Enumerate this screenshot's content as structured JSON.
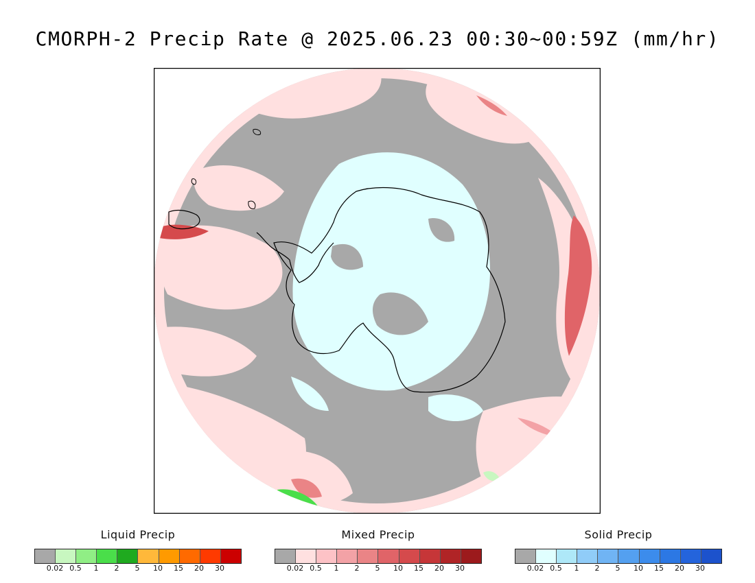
{
  "title": "CMORPH-2 Precip Rate @ 2025.06.23 00:30~00:59Z (mm/hr)",
  "map": {
    "projection": "south-polar-stereographic",
    "background_color": "#a8a8a8",
    "coastline_color": "#000000"
  },
  "legends": [
    {
      "title": "Liquid Precip",
      "colors": [
        "#a8a8a8",
        "#c8f7c0",
        "#90ee85",
        "#4ade4a",
        "#1faa1f",
        "#ffb83a",
        "#ff9a00",
        "#ff6a00",
        "#ff3a00",
        "#cc0000"
      ],
      "ticks": [
        "0.02",
        "0.5",
        "1",
        "2",
        "5",
        "10",
        "15",
        "20",
        "30"
      ]
    },
    {
      "title": "Mixed Precip",
      "colors": [
        "#a8a8a8",
        "#ffe0e0",
        "#fdc2c6",
        "#f3a2a6",
        "#ea8486",
        "#e06468",
        "#d54a4c",
        "#c63638",
        "#b02426",
        "#9c1a1c"
      ],
      "ticks": [
        "0.02",
        "0.5",
        "1",
        "2",
        "5",
        "10",
        "15",
        "20",
        "30"
      ]
    },
    {
      "title": "Solid Precip",
      "colors": [
        "#a8a8a8",
        "#e0ffff",
        "#aee8f8",
        "#90ccf8",
        "#70b4f4",
        "#54a0f0",
        "#3c8cec",
        "#2c78e4",
        "#2464dc",
        "#1c52cc"
      ],
      "ticks": [
        "0.02",
        "0.5",
        "1",
        "2",
        "5",
        "10",
        "15",
        "20",
        "30"
      ]
    }
  ]
}
